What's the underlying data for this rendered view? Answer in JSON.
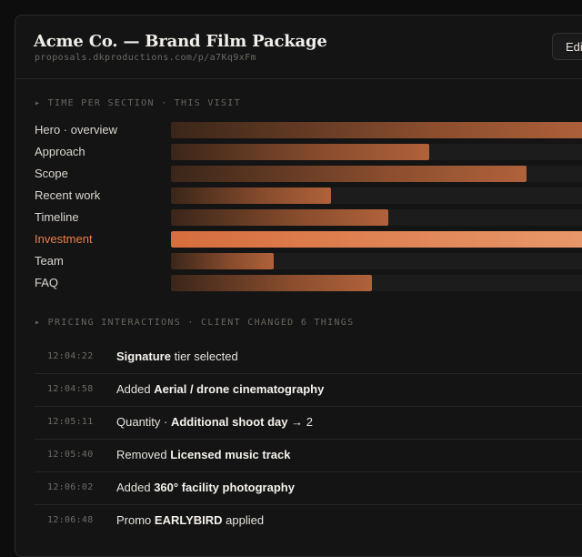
{
  "header": {
    "title": "Acme Co. — Brand Film Package",
    "url": "proposals.dkproductions.com/p/a7Kq9xFm",
    "edit_label": "Edit"
  },
  "time_section": {
    "label": "▸ TIME PER SECTION · THIS VISIT",
    "rows": [
      {
        "label": "Hero · overview",
        "value": 1.0,
        "highlight": false
      },
      {
        "label": "Approach",
        "value": 0.605,
        "highlight": false
      },
      {
        "label": "Scope",
        "value": 0.834,
        "highlight": false
      },
      {
        "label": "Recent work",
        "value": 0.375,
        "highlight": false
      },
      {
        "label": "Timeline",
        "value": 0.51,
        "highlight": false
      },
      {
        "label": "Investment",
        "value": 1.0,
        "highlight": true
      },
      {
        "label": "Team",
        "value": 0.241,
        "highlight": false
      },
      {
        "label": "FAQ",
        "value": 0.471,
        "highlight": false
      }
    ]
  },
  "pricing_section": {
    "label": "▸ PRICING INTERACTIONS · CLIENT CHANGED 6 THINGS",
    "events": [
      {
        "time": "12:04:22",
        "pre": "",
        "bold": "Signature",
        "post": " tier selected"
      },
      {
        "time": "12:04:58",
        "pre": "Added ",
        "bold": "Aerial / drone cinematography",
        "post": ""
      },
      {
        "time": "12:05:11",
        "pre": "Quantity · ",
        "bold": "Additional shoot day",
        "post": " → 2"
      },
      {
        "time": "12:05:40",
        "pre": "Removed ",
        "bold": "Licensed music track",
        "post": ""
      },
      {
        "time": "12:06:02",
        "pre": "Added ",
        "bold": "360° facility photography",
        "post": ""
      },
      {
        "time": "12:06:48",
        "pre": "Promo ",
        "bold": "EARLYBIRD",
        "post": " applied"
      }
    ]
  }
}
